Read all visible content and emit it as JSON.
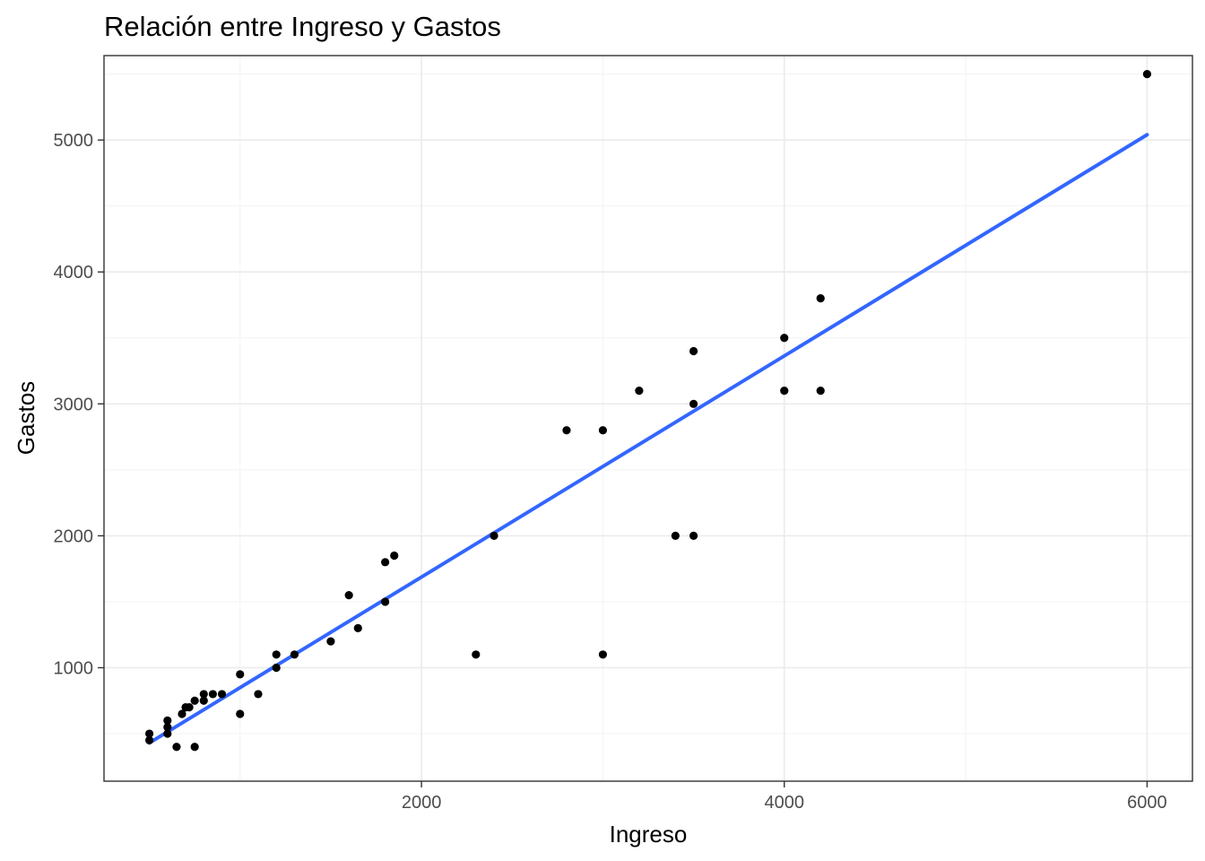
{
  "chart_data": {
    "type": "scatter",
    "title": "Relación entre Ingreso y Gastos",
    "xlabel": "Ingreso",
    "ylabel": "Gastos",
    "xlim": [
      250,
      6250
    ],
    "ylim": [
      140,
      5640
    ],
    "x_ticks": [
      2000,
      4000,
      6000
    ],
    "y_ticks": [
      1000,
      2000,
      3000,
      4000,
      5000
    ],
    "x_tick_labels": [
      "2000",
      "4000",
      "6000"
    ],
    "y_tick_labels": [
      "1000",
      "2000",
      "3000",
      "4000",
      "5000"
    ],
    "grid": true,
    "points": [
      {
        "x": 500,
        "y": 450
      },
      {
        "x": 500,
        "y": 500
      },
      {
        "x": 600,
        "y": 500
      },
      {
        "x": 600,
        "y": 550
      },
      {
        "x": 600,
        "y": 600
      },
      {
        "x": 650,
        "y": 400
      },
      {
        "x": 680,
        "y": 650
      },
      {
        "x": 700,
        "y": 700
      },
      {
        "x": 720,
        "y": 700
      },
      {
        "x": 750,
        "y": 400
      },
      {
        "x": 750,
        "y": 750
      },
      {
        "x": 800,
        "y": 750
      },
      {
        "x": 800,
        "y": 800
      },
      {
        "x": 850,
        "y": 800
      },
      {
        "x": 900,
        "y": 800
      },
      {
        "x": 1000,
        "y": 650
      },
      {
        "x": 1000,
        "y": 950
      },
      {
        "x": 1100,
        "y": 800
      },
      {
        "x": 1200,
        "y": 1000
      },
      {
        "x": 1200,
        "y": 1100
      },
      {
        "x": 1300,
        "y": 1100
      },
      {
        "x": 1500,
        "y": 1200
      },
      {
        "x": 1600,
        "y": 1550
      },
      {
        "x": 1650,
        "y": 1300
      },
      {
        "x": 1800,
        "y": 1500
      },
      {
        "x": 1800,
        "y": 1800
      },
      {
        "x": 1850,
        "y": 1850
      },
      {
        "x": 2300,
        "y": 1100
      },
      {
        "x": 2400,
        "y": 2000
      },
      {
        "x": 2800,
        "y": 2800
      },
      {
        "x": 3000,
        "y": 2800
      },
      {
        "x": 3000,
        "y": 1100
      },
      {
        "x": 3200,
        "y": 3100
      },
      {
        "x": 3400,
        "y": 2000
      },
      {
        "x": 3500,
        "y": 3400
      },
      {
        "x": 3500,
        "y": 3000
      },
      {
        "x": 3500,
        "y": 2000
      },
      {
        "x": 4000,
        "y": 3500
      },
      {
        "x": 4000,
        "y": 3100
      },
      {
        "x": 4200,
        "y": 3800
      },
      {
        "x": 4200,
        "y": 3100
      },
      {
        "x": 6000,
        "y": 5500
      }
    ],
    "fit_line": {
      "x": [
        500,
        6000
      ],
      "y": [
        430,
        5040
      ],
      "color": "#3366ff"
    },
    "point_color": "#000000"
  }
}
